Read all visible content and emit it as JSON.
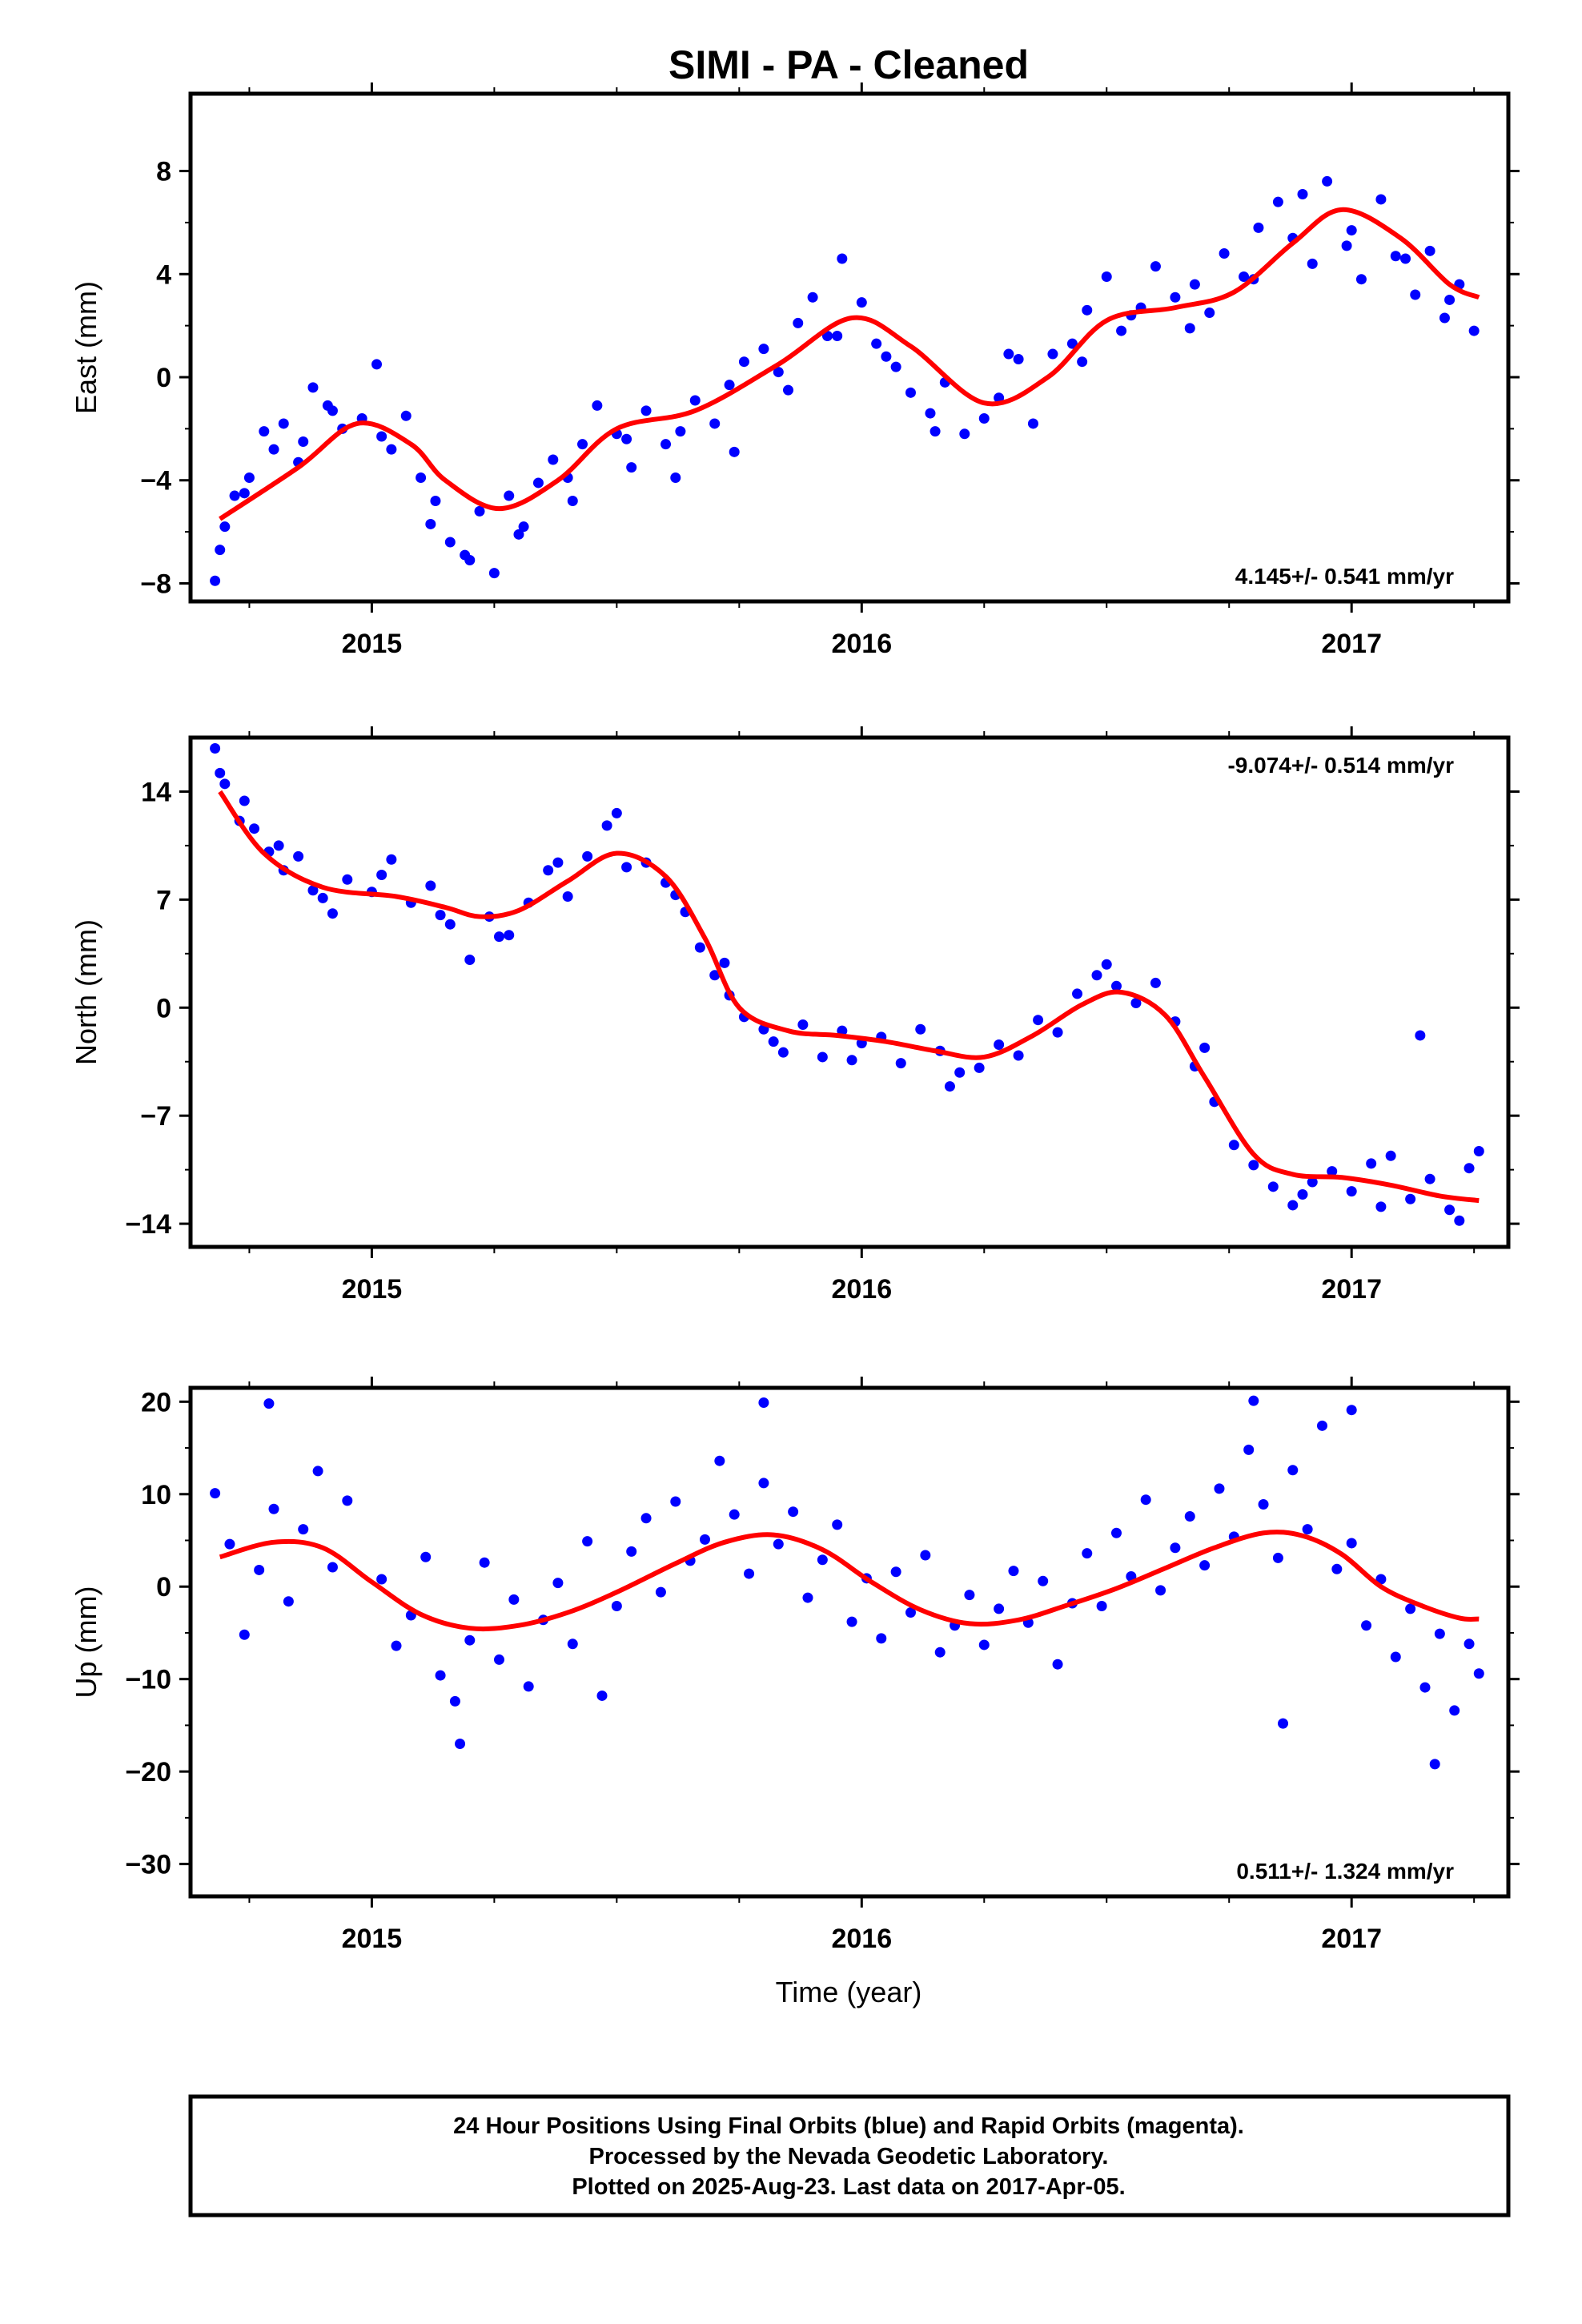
{
  "title": "SIMI  - PA - Cleaned",
  "xlabel": "Time (year)",
  "footer": {
    "line1": "24 Hour Positions Using Final Orbits (blue) and Rapid Orbits (magenta).",
    "line2": "Processed by the Nevada Geodetic Laboratory.",
    "line3": "Plotted on 2025-Aug-23. Last data on 2017-Apr-05."
  },
  "colors": {
    "points": "#0000ff",
    "fit": "#ff0000",
    "frame": "#000000"
  },
  "chart_data": [
    {
      "type": "scatter",
      "name": "east",
      "ylabel": "East (mm)",
      "xlim": [
        2014.63,
        2017.32
      ],
      "ylim": [
        -8.7,
        11.0
      ],
      "yticks": [
        -8,
        -4,
        0,
        4,
        8
      ],
      "xticks": [
        2015,
        2016,
        2017
      ],
      "rate": "4.145+/- 0.541 mm/yr",
      "rate_position": "bottom-right",
      "trend": {
        "x": [
          2014.69,
          2014.85,
          2014.97,
          2015.08,
          2015.15,
          2015.26,
          2015.38,
          2015.5,
          2015.66,
          2015.83,
          2015.98,
          2016.1,
          2016.25,
          2016.38,
          2016.5,
          2016.64,
          2016.76,
          2016.88,
          2016.98,
          2017.1,
          2017.2,
          2017.26
        ],
        "y": [
          -5.5,
          -3.5,
          -1.8,
          -2.6,
          -4.0,
          -5.1,
          -4.0,
          -2.0,
          -1.3,
          0.5,
          2.3,
          1.2,
          -1.0,
          0.0,
          2.2,
          2.7,
          3.3,
          5.2,
          6.5,
          5.4,
          3.6,
          3.1
        ]
      },
      "points": {
        "x": [
          2014.68,
          2014.7,
          2014.72,
          2014.75,
          2014.78,
          2014.82,
          2014.85,
          2014.88,
          2014.91,
          2014.94,
          2014.98,
          2015.01,
          2015.04,
          2015.07,
          2015.1,
          2015.13,
          2015.16,
          2015.19,
          2015.22,
          2015.25,
          2015.28,
          2015.31,
          2015.34,
          2015.37,
          2015.4,
          2015.43,
          2015.46,
          2015.5,
          2015.53,
          2015.56,
          2015.6,
          2015.63,
          2015.66,
          2015.7,
          2015.73,
          2015.76,
          2015.8,
          2015.83,
          2015.87,
          2015.9,
          2015.93,
          2015.96,
          2016.0,
          2016.03,
          2016.07,
          2016.1,
          2016.14,
          2016.17,
          2016.21,
          2016.25,
          2016.28,
          2016.32,
          2016.35,
          2016.39,
          2016.43,
          2016.46,
          2016.5,
          2016.53,
          2016.57,
          2016.6,
          2016.64,
          2016.67,
          2016.71,
          2016.74,
          2016.78,
          2016.81,
          2016.85,
          2016.88,
          2016.92,
          2016.95,
          2016.99,
          2017.02,
          2017.06,
          2017.09,
          2017.13,
          2017.16,
          2017.19,
          2017.22,
          2017.25,
          2014.69,
          2014.74,
          2014.8,
          2014.86,
          2014.92,
          2015.02,
          2015.12,
          2015.2,
          2015.3,
          2015.41,
          2015.52,
          2015.62,
          2015.74,
          2015.85,
          2015.95,
          2016.05,
          2016.15,
          2016.3,
          2016.45,
          2016.55,
          2016.68,
          2016.8,
          2016.9,
          2017.0,
          2017.11,
          2017.2
        ],
        "y": [
          -7.9,
          -5.8,
          -4.6,
          -3.9,
          -2.1,
          -1.8,
          -3.3,
          -0.4,
          -1.1,
          -2.0,
          -1.6,
          0.5,
          -2.8,
          -1.5,
          -3.9,
          -4.8,
          -6.4,
          -6.9,
          -5.2,
          -7.6,
          -4.6,
          -5.8,
          -4.1,
          -3.2,
          -3.9,
          -2.6,
          -1.1,
          -2.2,
          -3.5,
          -1.3,
          -2.6,
          -2.1,
          -0.9,
          -1.8,
          -0.3,
          0.6,
          1.1,
          0.2,
          2.1,
          3.1,
          1.6,
          4.6,
          2.9,
          1.3,
          0.4,
          -0.6,
          -1.4,
          -0.2,
          -2.2,
          -1.6,
          -0.8,
          0.7,
          -1.8,
          0.9,
          1.3,
          2.6,
          3.9,
          1.8,
          2.7,
          4.3,
          3.1,
          1.9,
          2.5,
          4.8,
          3.9,
          5.8,
          6.8,
          5.4,
          4.4,
          7.6,
          5.1,
          3.8,
          6.9,
          4.7,
          3.2,
          4.9,
          2.3,
          3.6,
          1.8,
          -6.7,
          -4.5,
          -2.8,
          -2.5,
          -1.3,
          -2.3,
          -5.7,
          -7.1,
          -6.1,
          -4.8,
          -2.4,
          -3.9,
          -2.9,
          -0.5,
          1.6,
          0.8,
          -2.1,
          0.9,
          0.6,
          2.4,
          3.6,
          3.8,
          7.1,
          5.7,
          4.6,
          3.0
        ]
      }
    },
    {
      "type": "scatter",
      "name": "north",
      "ylabel": "North (mm)",
      "xlim": [
        2014.63,
        2017.32
      ],
      "ylim": [
        -15.5,
        17.5
      ],
      "yticks": [
        -14,
        -7,
        0,
        7,
        14
      ],
      "xticks": [
        2015,
        2016,
        2017
      ],
      "rate": "-9.074+/- 0.514 mm/yr",
      "rate_position": "top-right",
      "trend": {
        "x": [
          2014.69,
          2014.78,
          2014.9,
          2015.05,
          2015.15,
          2015.22,
          2015.3,
          2015.4,
          2015.5,
          2015.6,
          2015.68,
          2015.75,
          2015.85,
          2015.95,
          2016.05,
          2016.15,
          2016.25,
          2016.35,
          2016.45,
          2016.53,
          2016.62,
          2016.7,
          2016.8,
          2016.88,
          2016.98,
          2017.08,
          2017.18,
          2017.26
        ],
        "y": [
          14.0,
          10.0,
          7.8,
          7.2,
          6.5,
          5.9,
          6.3,
          8.2,
          10.0,
          8.5,
          4.5,
          0.0,
          -1.5,
          -1.8,
          -2.2,
          -2.8,
          -3.2,
          -1.8,
          0.2,
          1.0,
          -0.5,
          -4.5,
          -9.5,
          -10.8,
          -11.0,
          -11.5,
          -12.2,
          -12.5
        ]
      },
      "points": {
        "x": [
          2014.68,
          2014.7,
          2014.73,
          2014.76,
          2014.79,
          2014.82,
          2014.85,
          2014.88,
          2014.92,
          2014.95,
          2015.0,
          2015.04,
          2015.08,
          2015.12,
          2015.16,
          2015.2,
          2015.24,
          2015.28,
          2015.32,
          2015.36,
          2015.4,
          2015.44,
          2015.48,
          2015.52,
          2015.56,
          2015.6,
          2015.64,
          2015.67,
          2015.7,
          2015.73,
          2015.76,
          2015.8,
          2015.84,
          2015.88,
          2015.92,
          2015.96,
          2016.0,
          2016.04,
          2016.08,
          2016.12,
          2016.16,
          2016.2,
          2016.24,
          2016.28,
          2016.32,
          2016.36,
          2016.4,
          2016.44,
          2016.48,
          2016.52,
          2016.56,
          2016.6,
          2016.64,
          2016.68,
          2016.72,
          2016.76,
          2016.8,
          2016.84,
          2016.88,
          2016.92,
          2016.96,
          2017.0,
          2017.04,
          2017.08,
          2017.12,
          2017.16,
          2017.2,
          2017.24,
          2017.26,
          2014.69,
          2014.74,
          2014.81,
          2014.9,
          2015.02,
          2015.14,
          2015.26,
          2015.38,
          2015.5,
          2015.62,
          2015.72,
          2015.82,
          2015.98,
          2016.18,
          2016.5,
          2016.7,
          2016.9,
          2017.06,
          2017.14,
          2017.22
        ],
        "y": [
          16.8,
          14.5,
          12.1,
          11.6,
          10.1,
          8.9,
          9.8,
          7.6,
          6.1,
          8.3,
          7.5,
          9.6,
          6.8,
          7.9,
          5.4,
          3.1,
          5.9,
          4.7,
          6.8,
          8.9,
          7.2,
          9.8,
          11.8,
          9.1,
          9.4,
          8.1,
          6.2,
          3.9,
          2.1,
          0.8,
          -0.6,
          -1.4,
          -2.9,
          -1.1,
          -3.2,
          -1.5,
          -2.3,
          -1.9,
          -3.6,
          -1.4,
          -2.8,
          -4.2,
          -3.9,
          -2.4,
          -3.1,
          -0.8,
          -1.6,
          0.9,
          2.1,
          1.4,
          0.3,
          1.6,
          -0.9,
          -3.8,
          -6.1,
          -8.9,
          -10.2,
          -11.6,
          -12.8,
          -11.3,
          -10.6,
          -11.9,
          -10.1,
          -9.6,
          -12.4,
          -11.1,
          -13.1,
          -10.4,
          -9.3,
          15.2,
          13.4,
          10.5,
          7.1,
          8.6,
          6.0,
          4.6,
          9.4,
          12.6,
          7.3,
          2.9,
          -2.2,
          -3.4,
          -5.1,
          2.8,
          -2.6,
          -12.1,
          -12.9,
          -1.8,
          -13.8
        ]
      }
    },
    {
      "type": "scatter",
      "name": "up",
      "ylabel": "Up (mm)",
      "xlim": [
        2014.63,
        2017.32
      ],
      "ylim": [
        -33.5,
        21.5
      ],
      "yticks": [
        -30,
        -20,
        -10,
        0,
        10,
        20
      ],
      "xticks": [
        2015,
        2016,
        2017
      ],
      "rate": "0.511+/- 1.324 mm/yr",
      "rate_position": "bottom-right",
      "trend": {
        "x": [
          2014.69,
          2014.8,
          2014.9,
          2015.0,
          2015.1,
          2015.2,
          2015.3,
          2015.4,
          2015.5,
          2015.62,
          2015.72,
          2015.82,
          2015.92,
          2016.02,
          2016.12,
          2016.22,
          2016.32,
          2016.42,
          2016.52,
          2016.62,
          2016.72,
          2016.82,
          2016.9,
          2016.98,
          2017.06,
          2017.14,
          2017.22,
          2017.26
        ],
        "y": [
          3.2,
          4.8,
          4.2,
          0.5,
          -3.0,
          -4.5,
          -4.2,
          -2.8,
          -0.6,
          2.5,
          4.8,
          5.6,
          4.0,
          0.5,
          -2.5,
          -4.0,
          -3.6,
          -2.0,
          -0.2,
          2.0,
          4.2,
          5.8,
          5.5,
          3.5,
          0.0,
          -2.0,
          -3.4,
          -3.5
        ]
      },
      "points": {
        "x": [
          2014.68,
          2014.71,
          2014.74,
          2014.77,
          2014.8,
          2014.83,
          2014.86,
          2014.89,
          2014.92,
          2014.95,
          2015.02,
          2015.05,
          2015.08,
          2015.11,
          2015.14,
          2015.17,
          2015.2,
          2015.23,
          2015.26,
          2015.29,
          2015.32,
          2015.35,
          2015.38,
          2015.41,
          2015.44,
          2015.47,
          2015.5,
          2015.53,
          2015.56,
          2015.59,
          2015.62,
          2015.65,
          2015.68,
          2015.71,
          2015.74,
          2015.77,
          2015.8,
          2015.83,
          2015.86,
          2015.89,
          2015.92,
          2015.95,
          2015.98,
          2016.01,
          2016.04,
          2016.07,
          2016.1,
          2016.13,
          2016.16,
          2016.19,
          2016.22,
          2016.25,
          2016.28,
          2016.31,
          2016.34,
          2016.37,
          2016.4,
          2016.43,
          2016.46,
          2016.49,
          2016.52,
          2016.55,
          2016.58,
          2016.61,
          2016.64,
          2016.67,
          2016.7,
          2016.73,
          2016.76,
          2016.79,
          2016.82,
          2016.85,
          2016.88,
          2016.91,
          2016.94,
          2016.97,
          2017.0,
          2017.03,
          2017.06,
          2017.09,
          2017.12,
          2017.15,
          2017.18,
          2017.21,
          2017.24,
          2017.26,
          2014.79,
          2015.8,
          2016.8,
          2017.0,
          2017.17,
          2016.86,
          2015.18
        ],
        "y": [
          10.1,
          4.6,
          -5.2,
          1.8,
          8.4,
          -1.6,
          6.2,
          12.5,
          2.1,
          9.3,
          0.8,
          -6.4,
          -3.1,
          3.2,
          -9.6,
          -12.4,
          -5.8,
          2.6,
          -7.9,
          -1.4,
          -10.8,
          -3.6,
          0.4,
          -6.2,
          4.9,
          -11.8,
          -2.1,
          3.8,
          7.4,
          -0.6,
          9.2,
          2.8,
          5.1,
          13.6,
          7.8,
          1.4,
          11.2,
          4.6,
          8.1,
          -1.2,
          2.9,
          6.7,
          -3.8,
          0.9,
          -5.6,
          1.6,
          -2.8,
          3.4,
          -7.1,
          -4.2,
          -0.9,
          -6.3,
          -2.4,
          1.7,
          -3.9,
          0.6,
          -8.4,
          -1.8,
          3.6,
          -2.1,
          5.8,
          1.1,
          9.4,
          -0.4,
          4.2,
          7.6,
          2.3,
          10.6,
          5.4,
          14.8,
          8.9,
          3.1,
          12.6,
          6.2,
          17.4,
          1.9,
          4.7,
          -4.2,
          0.8,
          -7.6,
          -2.4,
          -10.9,
          -5.1,
          -13.4,
          -6.2,
          -9.4,
          19.8,
          19.9,
          20.1,
          19.1,
          -19.2,
          -14.8,
          -17.0
        ]
      }
    }
  ]
}
